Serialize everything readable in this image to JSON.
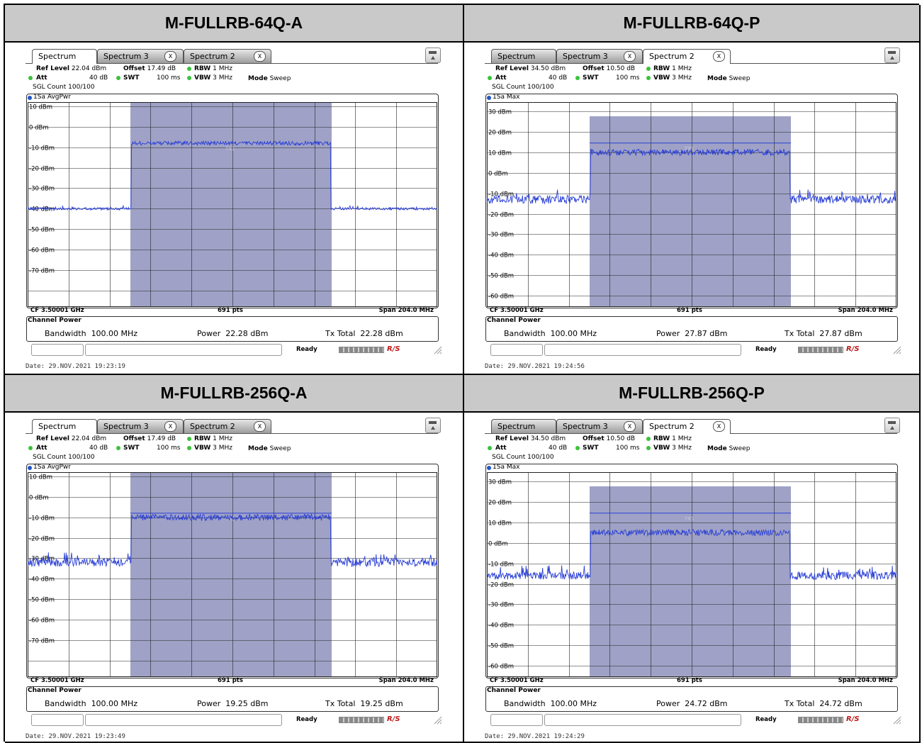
{
  "panels": [
    {
      "title": "M-FULLRB-64Q-A",
      "tabs": [
        "Spectrum",
        "Spectrum 3",
        "Spectrum 2"
      ],
      "active_tab": 0,
      "ref_level_label": "Ref Level",
      "ref_level": "22.04 dBm",
      "offset_label": "Offset",
      "offset": "17.49 dB",
      "rbw_label": "RBW",
      "rbw": "1 MHz",
      "att_label": "Att",
      "att": "40 dB",
      "swt_label": "SWT",
      "swt": "100 ms",
      "vbw_label": "VBW",
      "vbw": "3 MHz",
      "mode_label": "Mode",
      "mode": "Sweep",
      "sgl_count": "SGL Count 100/100",
      "trace_label": "1Sa AvgPwr",
      "y_labels": [
        "10 dBm",
        "0 dBm",
        "-10 dBm",
        "-20 dBm",
        "-30 dBm",
        "-40 dBm",
        "-50 dBm",
        "-60 dBm",
        "-70 dBm"
      ],
      "cf": "CF 3.50001 GHz",
      "pts": "691 pts",
      "span": "Span 204.0 MHz",
      "cp_title": "Channel Power",
      "bandwidth_label": "Bandwidth",
      "bandwidth": "100.00 MHz",
      "power_label": "Power",
      "power": "22.28 dBm",
      "txtotal_label": "Tx Total",
      "txtotal": "22.28 dBm",
      "ready": "Ready",
      "date": "Date: 29.NOV.2021  19:23:19"
    },
    {
      "title": "M-FULLRB-64Q-P",
      "tabs": [
        "Spectrum",
        "Spectrum 3",
        "Spectrum 2"
      ],
      "active_tab": 2,
      "ref_level_label": "Ref Level",
      "ref_level": "34.50 dBm",
      "offset_label": "Offset",
      "offset": "10.50 dB",
      "rbw_label": "RBW",
      "rbw": "1 MHz",
      "att_label": "Att",
      "att": "40 dB",
      "swt_label": "SWT",
      "swt": "100 ms",
      "vbw_label": "VBW",
      "vbw": "3 MHz",
      "mode_label": "Mode",
      "mode": "Sweep",
      "sgl_count": "SGL Count 100/100",
      "trace_label": "1Sa Max",
      "y_labels": [
        "30 dBm",
        "20 dBm",
        "10 dBm",
        "0 dBm",
        "-10 dBm",
        "-20 dBm",
        "-30 dBm",
        "-40 dBm",
        "-50 dBm",
        "-60 dBm"
      ],
      "cf": "CF 3.50001 GHz",
      "pts": "691 pts",
      "span": "Span 204.0 MHz",
      "cp_title": "Channel Power",
      "bandwidth_label": "Bandwidth",
      "bandwidth": "100.00 MHz",
      "power_label": "Power",
      "power": "27.87 dBm",
      "txtotal_label": "Tx Total",
      "txtotal": "27.87 dBm",
      "ready": "Ready",
      "date": "Date: 29.NOV.2021  19:24:56"
    },
    {
      "title": "M-FULLRB-256Q-A",
      "tabs": [
        "Spectrum",
        "Spectrum 3",
        "Spectrum 2"
      ],
      "active_tab": 0,
      "ref_level_label": "Ref Level",
      "ref_level": "22.04 dBm",
      "offset_label": "Offset",
      "offset": "17.49 dB",
      "rbw_label": "RBW",
      "rbw": "1 MHz",
      "att_label": "Att",
      "att": "40 dB",
      "swt_label": "SWT",
      "swt": "100 ms",
      "vbw_label": "VBW",
      "vbw": "3 MHz",
      "mode_label": "Mode",
      "mode": "Sweep",
      "sgl_count": "SGL Count 100/100",
      "trace_label": "1Sa AvgPwr",
      "y_labels": [
        "10 dBm",
        "0 dBm",
        "-10 dBm",
        "-20 dBm",
        "-30 dBm",
        "-40 dBm",
        "-50 dBm",
        "-60 dBm",
        "-70 dBm"
      ],
      "cf": "CF 3.50001 GHz",
      "pts": "691 pts",
      "span": "Span 204.0 MHz",
      "cp_title": "Channel Power",
      "bandwidth_label": "Bandwidth",
      "bandwidth": "100.00 MHz",
      "power_label": "Power",
      "power": "19.25 dBm",
      "txtotal_label": "Tx Total",
      "txtotal": "19.25 dBm",
      "ready": "Ready",
      "date": "Date: 29.NOV.2021  19:23:49"
    },
    {
      "title": "M-FULLRB-256Q-P",
      "tabs": [
        "Spectrum",
        "Spectrum 3",
        "Spectrum 2"
      ],
      "active_tab": 2,
      "ref_level_label": "Ref Level",
      "ref_level": "34.50 dBm",
      "offset_label": "Offset",
      "offset": "10.50 dB",
      "rbw_label": "RBW",
      "rbw": "1 MHz",
      "att_label": "Att",
      "att": "40 dB",
      "swt_label": "SWT",
      "swt": "100 ms",
      "vbw_label": "VBW",
      "vbw": "3 MHz",
      "mode_label": "Mode",
      "mode": "Sweep",
      "sgl_count": "SGL Count 100/100",
      "trace_label": "1Sa Max",
      "y_labels": [
        "30 dBm",
        "20 dBm",
        "10 dBm",
        "0 dBm",
        "-10 dBm",
        "-20 dBm",
        "-30 dBm",
        "-40 dBm",
        "-50 dBm",
        "-60 dBm"
      ],
      "cf": "CF 3.50001 GHz",
      "pts": "691 pts",
      "span": "Span 204.0 MHz",
      "cp_title": "Channel Power",
      "bandwidth_label": "Bandwidth",
      "bandwidth": "100.00 MHz",
      "power_label": "Power",
      "power": "24.72 dBm",
      "txtotal_label": "Tx Total",
      "txtotal": "24.72 dBm",
      "ready": "Ready",
      "date": "Date: 29.NOV.2021  19:24:29"
    }
  ],
  "chart_data": [
    {
      "type": "line",
      "ymax_dbm": 22.04,
      "ylim": [
        -77.96,
        22.04
      ],
      "ytick_values": [
        10,
        0,
        -10,
        -20,
        -30,
        -40,
        -50,
        -60,
        -70
      ],
      "channel_level_dbm": 2.0,
      "noise_level_dbm": -30.0,
      "noise_ripple_db": 0.6,
      "channel_ripple_db": 1.0,
      "marker_label": "TX1",
      "colors": {
        "trace": "#2a3fd6",
        "channel": "#9fa2c6"
      }
    },
    {
      "type": "line",
      "ymax_dbm": 34.5,
      "ylim": [
        -65.5,
        34.5
      ],
      "ytick_values": [
        30,
        20,
        10,
        0,
        -10,
        -20,
        -30,
        -40,
        -50,
        -60
      ],
      "channel_level_dbm": 10.0,
      "noise_level_dbm": -13.0,
      "noise_ripple_db": 2.0,
      "channel_ripple_db": 1.5,
      "limit_line_dbm": 14.5,
      "marker_label": "TX1",
      "colors": {
        "trace": "#2a3fd6",
        "channel": "#9fa2c6"
      }
    },
    {
      "type": "line",
      "ymax_dbm": 22.04,
      "ylim": [
        -77.96,
        22.04
      ],
      "ytick_values": [
        10,
        0,
        -10,
        -20,
        -30,
        -40,
        -50,
        -60,
        -70
      ],
      "channel_level_dbm": 0.0,
      "noise_level_dbm": -22.0,
      "noise_ripple_db": 2.0,
      "channel_ripple_db": 1.5,
      "limit_line_dbm": 2.0,
      "marker_label": "TX1",
      "colors": {
        "trace": "#2a3fd6",
        "channel": "#9fa2c6"
      }
    },
    {
      "type": "line",
      "ymax_dbm": 34.5,
      "ylim": [
        -65.5,
        34.5
      ],
      "ytick_values": [
        30,
        20,
        10,
        0,
        -10,
        -20,
        -30,
        -40,
        -50,
        -60
      ],
      "channel_level_dbm": 5.0,
      "noise_level_dbm": -16.0,
      "noise_ripple_db": 2.0,
      "channel_ripple_db": 1.5,
      "limit_line_dbm": 14.5,
      "marker_label": "TX1",
      "colors": {
        "trace": "#2a3fd6",
        "channel": "#9fa2c6"
      }
    }
  ]
}
